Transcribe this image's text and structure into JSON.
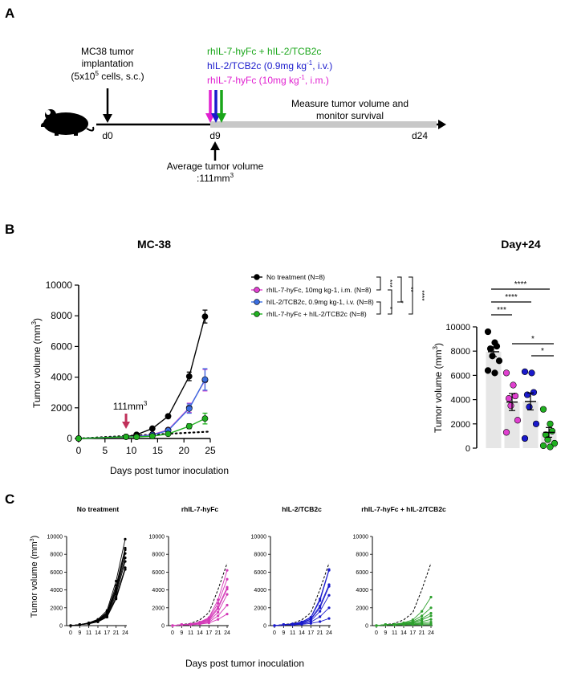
{
  "panels": {
    "a": "A",
    "b": "B",
    "c": "C"
  },
  "panel_a": {
    "implant_lines": [
      "MC38 tumor",
      "implantation"
    ],
    "implant_cells_pre": "(5x10",
    "implant_cells_sup": "5",
    "implant_cells_post": " cells, s.c.)",
    "treat_combo": "rhIL-7-hyFc + hIL-2/TCB2c",
    "treat_il2_pre": "hIL-2/TCB2c (0.9mg kg",
    "treat_il2_sup": "-1",
    "treat_il2_post": ", i.v.)",
    "treat_il7_pre": "rhIL-7-hyFc (10mg kg",
    "treat_il7_sup": "-1",
    "treat_il7_post": ", i.m.)",
    "measure_lines": [
      "Measure tumor volume and",
      "monitor survival"
    ],
    "day0": "d0",
    "day9": "d9",
    "day24": "d24",
    "avg_line1": "Average tumor volume",
    "avg_line2_pre": ":111mm",
    "avg_line2_sup": "3",
    "colors": {
      "combo": "#1aa61a",
      "il2": "#1a1acc",
      "il7": "#e020d0",
      "bar": "#c8c8c8"
    }
  },
  "chart_data": [
    {
      "id": "b-main",
      "type": "line",
      "title": "MC-38",
      "xlabel": "Days post tumor inoculation",
      "ylabel_pre": "Tumor volume (mm",
      "ylabel_sup": "3",
      "ylabel_post": ")",
      "xlim": [
        0,
        25
      ],
      "ylim": [
        0,
        10000
      ],
      "xticks": [
        "0",
        "5",
        "10",
        "15",
        "20",
        "25"
      ],
      "yticks": [
        "0",
        "2000",
        "4000",
        "6000",
        "8000",
        "10000"
      ],
      "annotation_pre": "111mm",
      "annotation_sup": "3",
      "annotation_x": 9,
      "series": [
        {
          "name": "No treatment (N=8)",
          "color": "#000000",
          "x": [
            0,
            9,
            11,
            14,
            17,
            21,
            24
          ],
          "y": [
            0,
            111,
            250,
            650,
            1450,
            4050,
            7950
          ],
          "err": [
            0,
            20,
            40,
            80,
            120,
            280,
            420
          ]
        },
        {
          "name": "rhIL-7-hyFc, 10mg kg-1, i.m. (N=8)",
          "color": "#e040d0",
          "x": [
            0,
            9,
            11,
            14,
            17,
            21,
            24
          ],
          "y": [
            0,
            111,
            130,
            260,
            560,
            2000,
            3800
          ],
          "err": [
            0,
            15,
            30,
            50,
            100,
            300,
            700
          ]
        },
        {
          "name": "hIL-2/TCB2c, 0.9mg kg-1, i.v. (N=8)",
          "color": "#3a6ee0",
          "x": [
            0,
            9,
            11,
            14,
            17,
            21,
            24
          ],
          "y": [
            0,
            111,
            120,
            230,
            520,
            1950,
            3850
          ],
          "err": [
            0,
            15,
            30,
            50,
            100,
            300,
            700
          ]
        },
        {
          "name": "rhIL-7-hyFc + hIL-2/TCB2c (N=8)",
          "color": "#20b020",
          "x": [
            0,
            9,
            11,
            14,
            17,
            21,
            24
          ],
          "y": [
            0,
            111,
            100,
            150,
            300,
            800,
            1300
          ],
          "err": [
            0,
            15,
            20,
            40,
            60,
            160,
            350
          ]
        }
      ],
      "baseline": {
        "x": [
          0,
          25
        ],
        "y": [
          0,
          450
        ]
      },
      "stats": [
        "***",
        "*",
        "*",
        "**",
        "****"
      ]
    },
    {
      "id": "b-day24",
      "type": "bar",
      "title": "Day+24",
      "ylabel_pre": "Tumor volume (mm",
      "ylabel_sup": "3",
      "ylabel_post": ")",
      "ylim": [
        0,
        10000
      ],
      "yticks": [
        "0",
        "2000",
        "4000",
        "6000",
        "8000",
        "10000"
      ],
      "groups": [
        {
          "color": "#000000",
          "mean": 7950,
          "sem": 400,
          "points": [
            9600,
            8700,
            8400,
            8200,
            7600,
            7200,
            6400,
            6200
          ]
        },
        {
          "color": "#e040d0",
          "mean": 3800,
          "sem": 700,
          "points": [
            6200,
            5200,
            4300,
            4100,
            3500,
            2300,
            1300
          ]
        },
        {
          "color": "#1a1acc",
          "mean": 3850,
          "sem": 700,
          "points": [
            6300,
            6200,
            4600,
            4400,
            3400,
            2000,
            800
          ]
        },
        {
          "color": "#20b020",
          "mean": 1300,
          "sem": 400,
          "points": [
            3200,
            2000,
            1400,
            1100,
            700,
            400,
            200,
            100
          ]
        }
      ],
      "sig_labels": [
        "****",
        "****",
        "***",
        "*",
        "*"
      ]
    },
    {
      "id": "c-notreat",
      "type": "line",
      "title": "No treatment",
      "color": "#000000",
      "show_ref": false,
      "ylim": [
        0,
        10000
      ],
      "xcats": [
        "0",
        "9",
        "11",
        "14",
        "17",
        "21",
        "24"
      ],
      "yticks": [
        "0",
        "2000",
        "4000",
        "6000",
        "8000",
        "10000"
      ],
      "lines": [
        [
          0,
          111,
          320,
          700,
          1700,
          5000,
          9700
        ],
        [
          0,
          111,
          300,
          650,
          1500,
          4500,
          8700
        ],
        [
          0,
          111,
          280,
          600,
          1400,
          4200,
          8500
        ],
        [
          0,
          111,
          260,
          560,
          1300,
          4000,
          8100
        ],
        [
          0,
          111,
          250,
          520,
          1200,
          3800,
          7600
        ],
        [
          0,
          111,
          230,
          480,
          1100,
          3500,
          7200
        ],
        [
          0,
          111,
          210,
          450,
          1000,
          3200,
          6500
        ],
        [
          0,
          111,
          200,
          420,
          950,
          3000,
          6300
        ]
      ]
    },
    {
      "id": "c-il7",
      "type": "line",
      "title": "rhIL-7-hyFc",
      "color": "#d43ab8",
      "show_ref": true,
      "ylim": [
        0,
        10000
      ],
      "xcats": [
        "0",
        "9",
        "11",
        "14",
        "17",
        "21",
        "24"
      ],
      "yticks": [
        "0",
        "2000",
        "4000",
        "6000",
        "8000",
        "10000"
      ],
      "ref": [
        0,
        111,
        250,
        650,
        1450,
        4050,
        7000
      ],
      "lines": [
        [
          0,
          111,
          180,
          400,
          900,
          2900,
          6200
        ],
        [
          0,
          111,
          170,
          360,
          800,
          2500,
          5200
        ],
        [
          0,
          111,
          150,
          320,
          700,
          2100,
          4300
        ],
        [
          0,
          111,
          140,
          300,
          600,
          1900,
          4100
        ],
        [
          0,
          111,
          120,
          260,
          500,
          1500,
          3500
        ],
        [
          0,
          111,
          100,
          200,
          400,
          1100,
          2300
        ],
        [
          0,
          111,
          90,
          160,
          300,
          700,
          1300
        ]
      ]
    },
    {
      "id": "c-il2",
      "type": "line",
      "title": "hIL-2/TCB2c",
      "color": "#1a1acc",
      "show_ref": true,
      "ylim": [
        0,
        10000
      ],
      "xcats": [
        "0",
        "9",
        "11",
        "14",
        "17",
        "21",
        "24"
      ],
      "yticks": [
        "0",
        "2000",
        "4000",
        "6000",
        "8000",
        "10000"
      ],
      "ref": [
        0,
        111,
        250,
        650,
        1450,
        4050,
        7000
      ],
      "lines": [
        [
          0,
          111,
          200,
          420,
          950,
          3000,
          6300
        ],
        [
          0,
          111,
          190,
          400,
          900,
          2800,
          6200
        ],
        [
          0,
          111,
          160,
          340,
          750,
          2200,
          4600
        ],
        [
          0,
          111,
          150,
          320,
          700,
          2000,
          4400
        ],
        [
          0,
          111,
          130,
          260,
          550,
          1600,
          3400
        ],
        [
          0,
          111,
          100,
          200,
          400,
          1000,
          2000
        ],
        [
          0,
          111,
          80,
          140,
          250,
          450,
          800
        ]
      ]
    },
    {
      "id": "c-combo",
      "type": "line",
      "title": "rhIL-7-hyFc + hIL-2/TCB2c",
      "color": "#2ea02e",
      "show_ref": true,
      "ylim": [
        0,
        10000
      ],
      "xcats": [
        "0",
        "9",
        "11",
        "14",
        "17",
        "21",
        "24"
      ],
      "yticks": [
        "0",
        "2000",
        "4000",
        "6000",
        "8000",
        "10000"
      ],
      "ref": [
        0,
        111,
        250,
        650,
        1450,
        4050,
        7000
      ],
      "lines": [
        [
          0,
          111,
          160,
          320,
          650,
          1600,
          3200
        ],
        [
          0,
          111,
          140,
          260,
          500,
          1100,
          2000
        ],
        [
          0,
          111,
          120,
          220,
          400,
          800,
          1400
        ],
        [
          0,
          111,
          110,
          190,
          340,
          650,
          1100
        ],
        [
          0,
          111,
          100,
          160,
          280,
          450,
          700
        ],
        [
          0,
          111,
          90,
          130,
          200,
          300,
          400
        ],
        [
          0,
          111,
          80,
          110,
          150,
          200,
          200
        ],
        [
          0,
          111,
          70,
          90,
          110,
          100,
          100
        ]
      ]
    }
  ],
  "panel_c": {
    "ylabel_pre": "Tumor volume (mm",
    "ylabel_sup": "3",
    "ylabel_post": ")",
    "xlabel": "Days post tumor inoculation"
  }
}
